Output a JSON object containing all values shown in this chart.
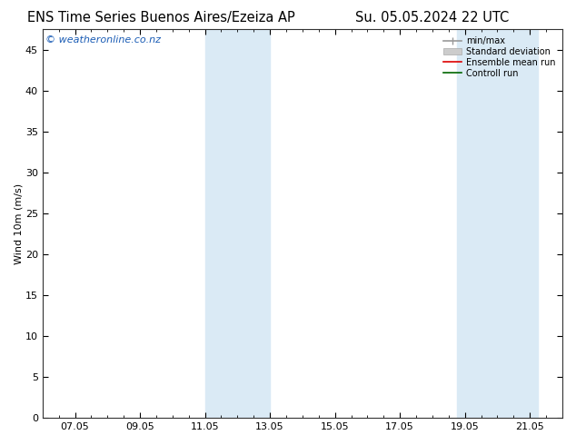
{
  "title_left": "ENS Time Series Buenos Aires/Ezeiza AP",
  "title_right": "Su. 05.05.2024 22 UTC",
  "ylabel": "Wind 10m (m/s)",
  "ylim": [
    0,
    47.5
  ],
  "yticks": [
    0,
    5,
    10,
    15,
    20,
    25,
    30,
    35,
    40,
    45
  ],
  "xlim": [
    0,
    16
  ],
  "xtick_labels": [
    "07.05",
    "09.05",
    "11.05",
    "13.05",
    "15.05",
    "17.05",
    "19.05",
    "21.05"
  ],
  "xtick_positions": [
    1,
    3,
    5,
    7,
    9,
    11,
    13,
    15
  ],
  "shade_bands": [
    {
      "start": 5.0,
      "end": 7.0
    },
    {
      "start": 12.75,
      "end": 15.25
    }
  ],
  "shade_color": "#daeaf5",
  "bg_color": "#ffffff",
  "plot_bg_color": "#ffffff",
  "watermark": "© weatheronline.co.nz",
  "watermark_color": "#1a5cb5",
  "watermark_fontsize": 8,
  "legend_items": [
    {
      "label": "min/max",
      "color": "#999999",
      "lw": 1.2
    },
    {
      "label": "Standard deviation",
      "color": "#cccccc",
      "lw": 5
    },
    {
      "label": "Ensemble mean run",
      "color": "#dd0000",
      "lw": 1.2
    },
    {
      "label": "Controll run",
      "color": "#006600",
      "lw": 1.2
    }
  ],
  "title_fontsize": 10.5,
  "axis_label_fontsize": 8,
  "tick_fontsize": 8
}
